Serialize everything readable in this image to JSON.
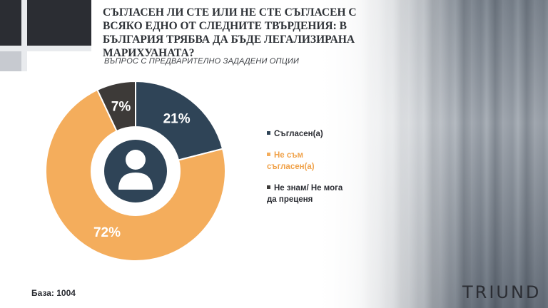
{
  "header": {
    "title": "СЪГЛАСЕН ЛИ СТЕ ИЛИ НЕ СТЕ СЪГЛАСЕН С ВСЯКО ЕДНО ОТ СЛЕДНИТЕ ТВЪРДЕНИЯ: В БЪЛГАРИЯ ТРЯБВА ДА БЪДЕ ЛЕГАЛИЗИРАНА МАРИХУАНАТА?",
    "subtitle": "ВЪПРОС С ПРЕДВАРИТЕЛНО ЗАДАДЕНИ ОПЦИИ"
  },
  "chart_data": {
    "type": "pie",
    "title": "",
    "donut": true,
    "legend_position": "right",
    "slices": [
      {
        "label": "Съгласен(а)",
        "value": 21,
        "display": "21%",
        "color": "#2f4457",
        "text_color": "#2b2d33"
      },
      {
        "label": "Не съм съгласен(а)",
        "value": 72,
        "display": "72%",
        "color": "#f4ad5c",
        "text_color": "#f0a24a"
      },
      {
        "label": "Не знам/ Не мога да преценя",
        "value": 7,
        "display": "7%",
        "color": "#3d3a38",
        "text_color": "#2b2d33"
      }
    ]
  },
  "footer": {
    "base": "База: 1004",
    "logo": "TRIUND"
  }
}
